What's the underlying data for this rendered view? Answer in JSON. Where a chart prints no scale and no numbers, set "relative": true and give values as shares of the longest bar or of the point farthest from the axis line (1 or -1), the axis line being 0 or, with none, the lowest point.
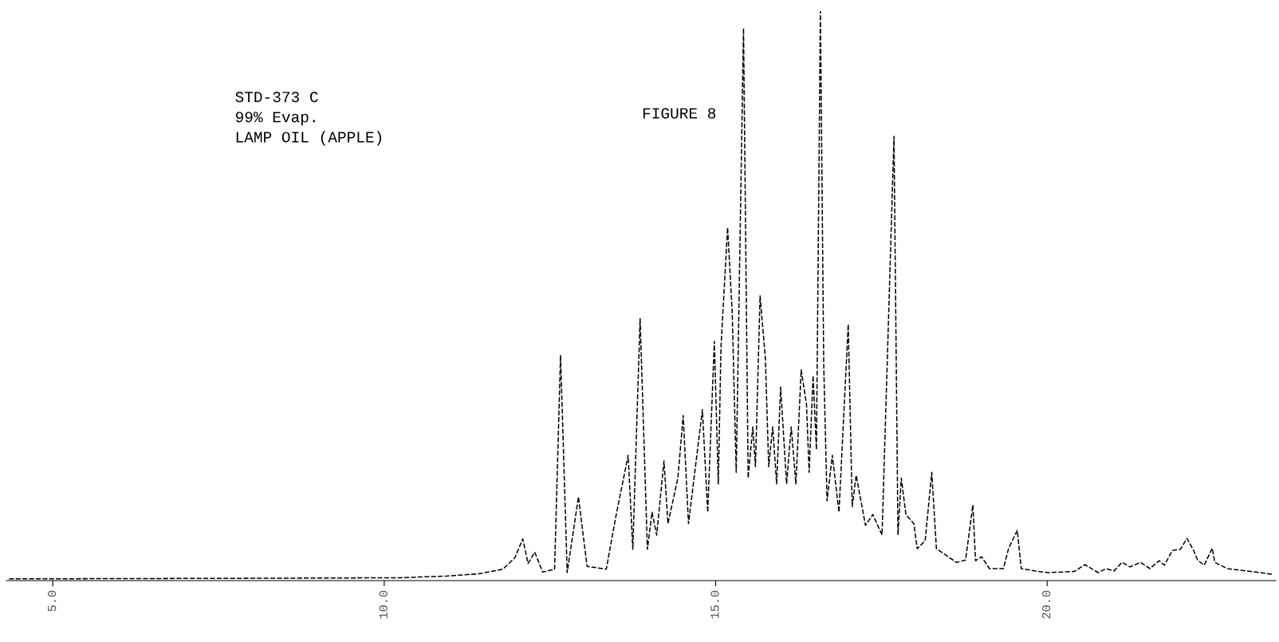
{
  "chart_data": {
    "type": "line",
    "title": "FIGURE 8",
    "relative": true,
    "line_style": "dashed",
    "marker": "none",
    "grid": false,
    "legend": false,
    "annotations": [
      "STD-373 C\n99% Evap.\nLAMP OIL (APPLE)"
    ],
    "xlim": [
      4.3,
      23.45
    ],
    "xticks": [
      {
        "value": 5,
        "label": "5.0"
      },
      {
        "value": 10,
        "label": "10.0"
      },
      {
        "value": 15,
        "label": "15.0"
      },
      {
        "value": 20,
        "label": "20.0"
      }
    ],
    "series": [
      {
        "color": "#000000",
        "x": [
          4.34,
          7.84,
          10.23,
          10.95,
          11.43,
          11.79,
          11.97,
          12.09,
          12.17,
          12.27,
          12.39,
          12.57,
          12.66,
          12.76,
          12.93,
          13.06,
          13.35,
          13.49,
          13.68,
          13.75,
          13.86,
          13.97,
          14.04,
          14.11,
          14.22,
          14.28,
          14.43,
          14.51,
          14.59,
          14.8,
          14.88,
          14.98,
          15.04,
          15.08,
          15.18,
          15.25,
          15.31,
          15.42,
          15.49,
          15.56,
          15.6,
          15.67,
          15.75,
          15.8,
          15.86,
          15.92,
          15.98,
          16.07,
          16.14,
          16.21,
          16.29,
          16.37,
          16.41,
          16.47,
          16.52,
          16.58,
          16.63,
          16.68,
          16.76,
          16.86,
          17.0,
          17.06,
          17.12,
          17.26,
          17.37,
          17.51,
          17.69,
          17.75,
          17.8,
          17.87,
          17.99,
          18.04,
          18.16,
          18.26,
          18.33,
          18.63,
          18.77,
          18.88,
          18.92,
          19.01,
          19.13,
          19.34,
          19.42,
          19.55,
          19.61,
          19.81,
          20.02,
          20.41,
          20.57,
          20.77,
          20.89,
          21.01,
          21.13,
          21.25,
          21.41,
          21.55,
          21.69,
          21.77,
          21.89,
          22.01,
          22.11,
          22.21,
          22.27,
          22.37,
          22.49,
          22.53,
          22.72,
          23.01,
          23.41
        ],
        "values": [
          0.003,
          0.004,
          0.005,
          0.008,
          0.012,
          0.02,
          0.04,
          0.073,
          0.03,
          0.05,
          0.015,
          0.02,
          0.396,
          0.014,
          0.147,
          0.025,
          0.02,
          0.11,
          0.22,
          0.055,
          0.46,
          0.055,
          0.12,
          0.08,
          0.21,
          0.1,
          0.18,
          0.29,
          0.1,
          0.3,
          0.12,
          0.42,
          0.17,
          0.41,
          0.62,
          0.47,
          0.19,
          0.97,
          0.18,
          0.27,
          0.2,
          0.5,
          0.39,
          0.2,
          0.27,
          0.17,
          0.34,
          0.17,
          0.27,
          0.17,
          0.37,
          0.31,
          0.19,
          0.36,
          0.23,
          1.0,
          0.38,
          0.14,
          0.22,
          0.12,
          0.45,
          0.13,
          0.185,
          0.097,
          0.116,
          0.08,
          0.78,
          0.08,
          0.18,
          0.116,
          0.1,
          0.056,
          0.07,
          0.19,
          0.056,
          0.032,
          0.036,
          0.133,
          0.035,
          0.042,
          0.021,
          0.021,
          0.057,
          0.088,
          0.021,
          0.017,
          0.014,
          0.016,
          0.028,
          0.014,
          0.021,
          0.017,
          0.032,
          0.024,
          0.032,
          0.021,
          0.035,
          0.027,
          0.053,
          0.055,
          0.074,
          0.053,
          0.036,
          0.027,
          0.057,
          0.032,
          0.021,
          0.017,
          0.011
        ]
      }
    ]
  }
}
